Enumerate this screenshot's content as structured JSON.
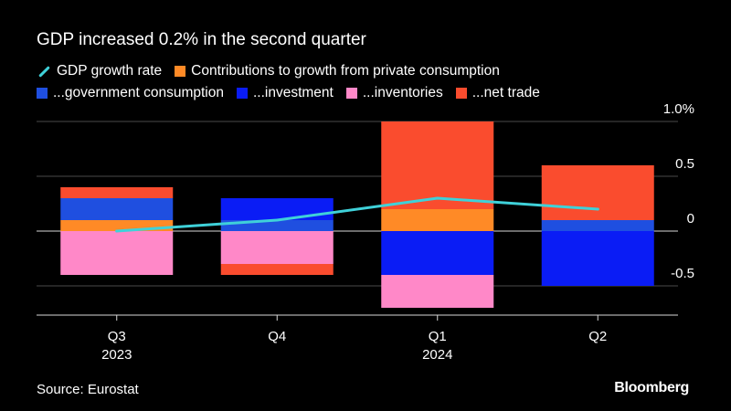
{
  "header": {
    "title": "GDP increased 0.2% in the second quarter"
  },
  "legend": {
    "items": [
      {
        "label": "GDP growth rate",
        "color": "#3fd1d9",
        "kind": "line"
      },
      {
        "label": "Contributions to growth from private consumption",
        "color": "#ff8a26",
        "kind": "bar"
      },
      {
        "label": "...government consumption",
        "color": "#1f4fe0",
        "kind": "bar"
      },
      {
        "label": "...investment",
        "color": "#0a1cf5",
        "kind": "bar"
      },
      {
        "label": "...inventories",
        "color": "#ff88c8",
        "kind": "bar"
      },
      {
        "label": "...net trade",
        "color": "#fa4c2e",
        "kind": "bar"
      }
    ]
  },
  "chart_data": {
    "type": "bar",
    "stacked": true,
    "title": "GDP increased 0.2% in the second quarter",
    "categories": [
      "Q3",
      "Q4",
      "Q1",
      "Q2"
    ],
    "category_sublabels": [
      "2023",
      "",
      "2024",
      ""
    ],
    "ylim": [
      -0.72,
      1.1
    ],
    "yticks": [
      1.0,
      0.5,
      0,
      -0.5
    ],
    "ytick_labels": [
      "1.0%",
      "0.5",
      "0",
      "-0.5"
    ],
    "grid": true,
    "series": [
      {
        "name": "Contributions to growth from private consumption",
        "color": "#ff8a26",
        "values": [
          0.1,
          0.0,
          0.2,
          0.0
        ]
      },
      {
        "name": "...government consumption",
        "color": "#1f4fe0",
        "values": [
          0.2,
          0.1,
          0.0,
          0.1
        ]
      },
      {
        "name": "...investment",
        "color": "#0a1cf5",
        "values": [
          0.0,
          0.2,
          -0.4,
          -0.5
        ]
      },
      {
        "name": "...inventories",
        "color": "#ff88c8",
        "values": [
          -0.4,
          -0.3,
          -0.3,
          0.0
        ]
      },
      {
        "name": "...net trade",
        "color": "#fa4c2e",
        "values": [
          0.1,
          -0.1,
          0.8,
          0.5
        ]
      }
    ],
    "line": {
      "name": "GDP growth rate",
      "color": "#3fd1d9",
      "values": [
        0.0,
        0.1,
        0.3,
        0.2
      ]
    }
  },
  "footer": {
    "source": "Source: Eurostat",
    "brand": "Bloomberg"
  }
}
